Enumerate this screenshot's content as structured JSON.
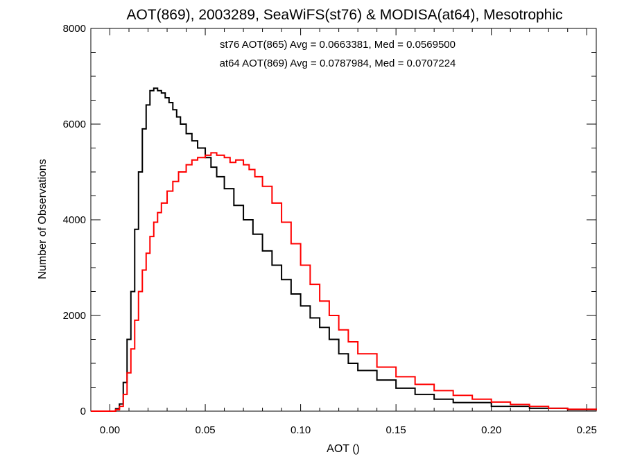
{
  "chart_data": {
    "type": "line",
    "title": "AOT(869), 2003289, SeaWiFS(st76) & MODISA(at64), Mesotrophic",
    "xlabel": "AOT ()",
    "ylabel": "Number of Observations",
    "xlim": [
      -0.01,
      0.255
    ],
    "ylim": [
      0,
      8000
    ],
    "x_ticks": [
      0.0,
      0.05,
      0.1,
      0.15,
      0.2,
      0.25
    ],
    "x_tick_labels": [
      "0.00",
      "0.05",
      "0.10",
      "0.15",
      "0.20",
      "0.25"
    ],
    "y_ticks": [
      0,
      2000,
      4000,
      6000,
      8000
    ],
    "y_tick_labels": [
      "0",
      "2000",
      "4000",
      "6000",
      "8000"
    ],
    "step": true,
    "grid": false,
    "annotations": [
      {
        "text": "st76 AOT(865) Avg = 0.0663381, Med = 0.0569500",
        "color": "#000000"
      },
      {
        "text": "at64 AOT(869) Avg = 0.0787984, Med = 0.0707224",
        "color": "#ff0000"
      }
    ],
    "series": [
      {
        "color": "#000000",
        "x": [
          -0.01,
          0.0,
          0.003,
          0.005,
          0.007,
          0.009,
          0.011,
          0.013,
          0.015,
          0.017,
          0.019,
          0.021,
          0.023,
          0.025,
          0.027,
          0.029,
          0.031,
          0.033,
          0.035,
          0.037,
          0.04,
          0.043,
          0.046,
          0.05,
          0.053,
          0.056,
          0.06,
          0.065,
          0.07,
          0.075,
          0.08,
          0.085,
          0.09,
          0.095,
          0.1,
          0.105,
          0.11,
          0.115,
          0.12,
          0.125,
          0.13,
          0.14,
          0.15,
          0.16,
          0.17,
          0.18,
          0.2,
          0.22,
          0.24,
          0.255
        ],
        "values": [
          0,
          0,
          50,
          150,
          600,
          1500,
          2500,
          3800,
          5000,
          5900,
          6400,
          6700,
          6750,
          6700,
          6650,
          6550,
          6450,
          6300,
          6150,
          6000,
          5800,
          5650,
          5500,
          5300,
          5100,
          4900,
          4650,
          4300,
          4000,
          3700,
          3350,
          3050,
          2750,
          2450,
          2200,
          1950,
          1750,
          1500,
          1200,
          1000,
          850,
          650,
          480,
          350,
          250,
          180,
          100,
          60,
          30,
          20
        ]
      },
      {
        "color": "#ff0000",
        "x": [
          -0.01,
          0.0,
          0.003,
          0.005,
          0.007,
          0.009,
          0.011,
          0.013,
          0.015,
          0.017,
          0.019,
          0.021,
          0.023,
          0.025,
          0.027,
          0.03,
          0.033,
          0.036,
          0.04,
          0.043,
          0.046,
          0.05,
          0.053,
          0.056,
          0.06,
          0.063,
          0.066,
          0.07,
          0.073,
          0.076,
          0.08,
          0.085,
          0.09,
          0.095,
          0.1,
          0.105,
          0.11,
          0.115,
          0.12,
          0.125,
          0.13,
          0.14,
          0.15,
          0.16,
          0.17,
          0.18,
          0.19,
          0.2,
          0.21,
          0.22,
          0.23,
          0.24,
          0.255
        ],
        "values": [
          0,
          0,
          30,
          100,
          350,
          800,
          1300,
          1900,
          2500,
          2950,
          3300,
          3650,
          3950,
          4150,
          4350,
          4600,
          4800,
          5000,
          5150,
          5250,
          5300,
          5350,
          5400,
          5350,
          5300,
          5200,
          5250,
          5150,
          5050,
          4900,
          4700,
          4350,
          3950,
          3500,
          3050,
          2650,
          2300,
          2000,
          1700,
          1450,
          1200,
          920,
          720,
          560,
          430,
          330,
          250,
          190,
          140,
          100,
          60,
          40,
          20
        ]
      }
    ]
  }
}
